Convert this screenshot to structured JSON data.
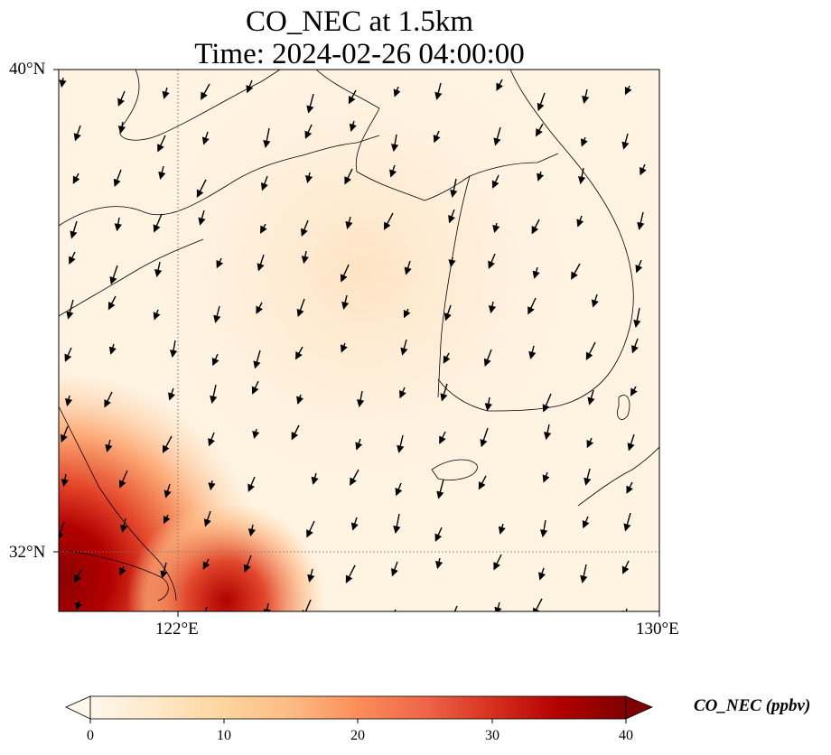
{
  "title": {
    "line1": "CO_NEC at 1.5km",
    "line2": "Time: 2024-02-26 04:00:00"
  },
  "map": {
    "lat_range": [
      30.8,
      40.0
    ],
    "lon_range": [
      120.0,
      130.0
    ],
    "lat_ticks": [
      {
        "value": 40,
        "label": "40°N"
      },
      {
        "value": 32,
        "label": "32°N"
      }
    ],
    "lon_ticks": [
      {
        "value": 122,
        "label": "122°E"
      },
      {
        "value": 130,
        "label": "130°E"
      }
    ],
    "gridlines": "dotted at 122°E and 32°N",
    "field": "CO_NEC",
    "field_pattern": "high values (30–40 ppbv) concentrated in the southwest near the Yangtze delta; elsewhere 0–8 ppbv",
    "wind_vectors": "mostly pointing south-southwest across the domain"
  },
  "colorbar": {
    "label": "CO_NEC (ppbv)",
    "min": 0,
    "max": 40,
    "ticks": [
      "0",
      "10",
      "20",
      "30",
      "40"
    ],
    "colormap": "OrRd",
    "colors": [
      "#fff7ec",
      "#fee8c8",
      "#fdd49e",
      "#fdbb84",
      "#fc8d59",
      "#ef6548",
      "#d7301f",
      "#b30000",
      "#7f0000"
    ],
    "extend": "both"
  }
}
